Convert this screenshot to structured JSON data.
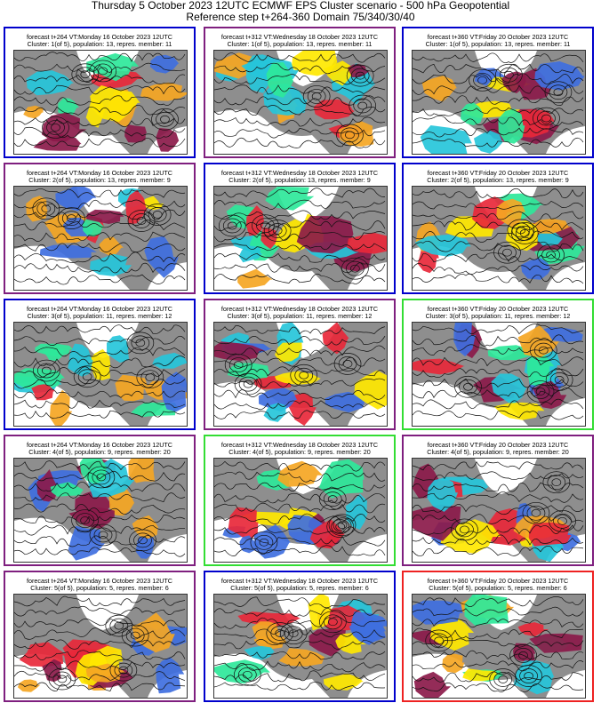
{
  "header": {
    "title": "Thursday 5 October 2023 12UTC ECMWF EPS Cluster scenario - 500 hPa Geopotential",
    "subtitle": "Reference step t+264-360 Domain 75/340/30/40"
  },
  "colors": {
    "blue": "#0000cc",
    "purple": "#7f1f7f",
    "green": "#33dd33",
    "red": "#ee2222",
    "land": "#8e8e8e",
    "ocean": "#ffffff"
  },
  "panels": [
    {
      "forecast": "forecast t+264 VT:Monday 16 October 2023 12UTC",
      "cluster": "Cluster: 1(of 5), population: 13, repres. member: 11",
      "frame": "blue"
    },
    {
      "forecast": "forecast t+312 VT:Wednesday 18 October 2023 12UTC",
      "cluster": "Cluster: 1(of 5), population: 13, repres. member: 11",
      "frame": "purple"
    },
    {
      "forecast": "forecast t+360 VT:Friday 20 October 2023 12UTC",
      "cluster": "Cluster: 1(of 5), population: 13, repres. member: 11",
      "frame": "blue"
    },
    {
      "forecast": "forecast t+264 VT:Monday 16 October 2023 12UTC",
      "cluster": "Cluster: 2(of 5), population: 13, repres. member: 9",
      "frame": "purple"
    },
    {
      "forecast": "forecast t+312 VT:Wednesday 18 October 2023 12UTC",
      "cluster": "Cluster: 2(of 5), population: 13, repres. member: 9",
      "frame": "blue"
    },
    {
      "forecast": "forecast t+360 VT:Friday 20 October 2023 12UTC",
      "cluster": "Cluster: 2(of 5), population: 13, repres. member: 9",
      "frame": "blue"
    },
    {
      "forecast": "forecast t+264 VT:Monday 16 October 2023 12UTC",
      "cluster": "Cluster: 3(of 5), population: 11, repres. member: 12",
      "frame": "blue"
    },
    {
      "forecast": "forecast t+312 VT:Wednesday 18 October 2023 12UTC",
      "cluster": "Cluster: 3(of 5), population: 11, repres. member: 12",
      "frame": "purple"
    },
    {
      "forecast": "forecast t+360 VT:Friday 20 October 2023 12UTC",
      "cluster": "Cluster: 3(of 5), population: 11, repres. member: 12",
      "frame": "green"
    },
    {
      "forecast": "forecast t+264 VT:Monday 16 October 2023 12UTC",
      "cluster": "Cluster: 4(of 5), population: 9, repres. member: 20",
      "frame": "purple"
    },
    {
      "forecast": "forecast t+312 VT:Wednesday 18 October 2023 12UTC",
      "cluster": "Cluster: 4(of 5), population: 9, repres. member: 20",
      "frame": "green"
    },
    {
      "forecast": "forecast t+360 VT:Friday 20 October 2023 12UTC",
      "cluster": "Cluster: 4(of 5), population: 9, repres. member: 20",
      "frame": "purple"
    },
    {
      "forecast": "forecast t+264 VT:Monday 16 October 2023 12UTC",
      "cluster": "Cluster: 5(of 5), population: 5, repres. member: 6",
      "frame": "purple"
    },
    {
      "forecast": "forecast t+312 VT:Wednesday 18 October 2023 12UTC",
      "cluster": "Cluster: 5(of 5), population: 5, repres. member: 6",
      "frame": "blue"
    },
    {
      "forecast": "forecast t+360 VT:Friday 20 October 2023 12UTC",
      "cluster": "Cluster: 5(of 5), population: 5, repres. member: 6",
      "frame": "red"
    }
  ]
}
